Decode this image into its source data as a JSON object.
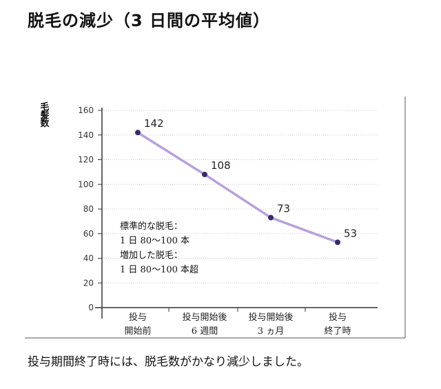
{
  "title": "脱毛の減少（3 日間の平均値）",
  "ylabel": "毛髪数",
  "note_lines": [
    "標準的な脱毛：",
    "1 日 80〜100 本",
    "増加した脱毛：",
    "1 日 80〜100 本超"
  ],
  "caption": "投与期間終了時には、脱毛数がかなり減少しました。",
  "chart_data": {
    "type": "line",
    "categories": [
      [
        "投与",
        "開始前"
      ],
      [
        "投与開始後",
        "6 週間"
      ],
      [
        "投与開始後",
        "3 ヵ月"
      ],
      [
        "投与",
        "終了時"
      ]
    ],
    "values": [
      142,
      108,
      73,
      53
    ],
    "data_labels": [
      "142",
      "108",
      "73",
      "53"
    ],
    "ylim": [
      0,
      160
    ],
    "yticks": [
      0,
      20,
      40,
      60,
      80,
      100,
      120,
      140,
      160
    ],
    "ylabel": "毛髪数",
    "grid": true,
    "line_color": "#b79fdc",
    "marker_color": "#3b2a6b"
  }
}
